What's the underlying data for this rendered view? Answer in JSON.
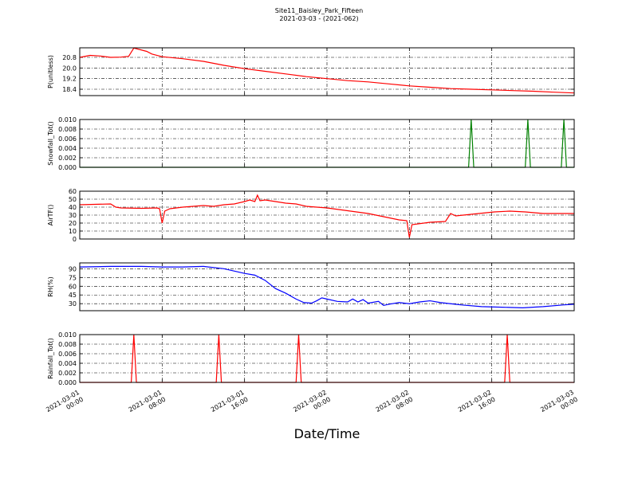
{
  "title": "Site11_Baisley_Park_Fifteen",
  "subtitle": "2021-03-03 - (2021-062)",
  "x_axis": {
    "label": "Date/Time",
    "xlim": [
      "2021-03-01 00:00",
      "2021-03-03 00:00"
    ],
    "xticks": [
      {
        "value": "2021-03-01 00:00",
        "label": [
          "2021-03-01",
          "00:00"
        ]
      },
      {
        "value": "2021-03-01 08:00",
        "label": [
          "2021-03-01",
          "08:00"
        ]
      },
      {
        "value": "2021-03-01 16:00",
        "label": [
          "2021-03-01",
          "16:00"
        ]
      },
      {
        "value": "2021-03-02 00:00",
        "label": [
          "2021-03-02",
          "00:00"
        ]
      },
      {
        "value": "2021-03-02 08:00",
        "label": [
          "2021-03-02",
          "08:00"
        ]
      },
      {
        "value": "2021-03-02 16:00",
        "label": [
          "2021-03-02",
          "16:00"
        ]
      },
      {
        "value": "2021-03-03 00:00",
        "label": [
          "2021-03-03",
          "00:00"
        ]
      }
    ]
  },
  "chart_data": [
    {
      "type": "line",
      "ylabel": "P(unitless)",
      "color": "#ff0000",
      "grid": true,
      "ylim": [
        17.92,
        21.52
      ],
      "yticks": [
        18.4,
        19.2,
        {
          "value": 20.0,
          "label": "20.0"
        },
        20.8
      ],
      "x": [
        "2021-03-01 00:00",
        "2021-03-01 01:00",
        "2021-03-01 02:00",
        "2021-03-01 03:00",
        "2021-03-01 04:00",
        "2021-03-01 04:45",
        "2021-03-01 05:15",
        "2021-03-01 06:30",
        "2021-03-01 07:00",
        "2021-03-01 08:00",
        "2021-03-01 10:00",
        "2021-03-01 12:00",
        "2021-03-01 14:00",
        "2021-03-01 16:00",
        "2021-03-01 18:00",
        "2021-03-01 20:00",
        "2021-03-01 22:00",
        "2021-03-02 00:00",
        "2021-03-02 02:00",
        "2021-03-02 04:00",
        "2021-03-02 06:00",
        "2021-03-02 08:00",
        "2021-03-02 10:00",
        "2021-03-02 12:00",
        "2021-03-02 14:00",
        "2021-03-02 16:00",
        "2021-03-02 18:00",
        "2021-03-02 20:00",
        "2021-03-02 22:00",
        "2021-03-03 00:00"
      ],
      "values": [
        20.8,
        20.95,
        20.9,
        20.8,
        20.82,
        20.88,
        21.5,
        21.25,
        21.05,
        20.85,
        20.7,
        20.5,
        20.2,
        19.95,
        19.75,
        19.55,
        19.35,
        19.2,
        19.05,
        18.95,
        18.8,
        18.65,
        18.55,
        18.45,
        18.4,
        18.35,
        18.3,
        18.25,
        18.18,
        18.12
      ]
    },
    {
      "type": "line",
      "ylabel": "Snowfall_Tot()",
      "color": "#008000",
      "grid": true,
      "ylim": [
        0,
        0.01
      ],
      "yticks": [
        {
          "value": 0,
          "label": "0.000"
        },
        {
          "value": 0.002,
          "label": "0.002"
        },
        {
          "value": 0.004,
          "label": "0.004"
        },
        {
          "value": 0.006,
          "label": "0.006"
        },
        {
          "value": 0.008,
          "label": "0.008"
        },
        {
          "value": 0.01,
          "label": "0.010"
        }
      ],
      "x": [
        "2021-03-01 00:00",
        "2021-03-02 13:45",
        "2021-03-02 14:00",
        "2021-03-02 14:15",
        "2021-03-02 19:15",
        "2021-03-02 19:30",
        "2021-03-02 19:45",
        "2021-03-02 22:45",
        "2021-03-02 23:00",
        "2021-03-02 23:15",
        "2021-03-03 00:00"
      ],
      "values": [
        0,
        0,
        0.01,
        0,
        0,
        0.01,
        0,
        0,
        0.01,
        0,
        0
      ]
    },
    {
      "type": "line",
      "ylabel": "AirTF()",
      "color": "#ff0000",
      "grid": true,
      "ylim": [
        0,
        60
      ],
      "yticks": [
        0,
        10,
        20,
        30,
        40,
        50,
        60
      ],
      "x": [
        "2021-03-01 00:00",
        "2021-03-01 03:00",
        "2021-03-01 03:30",
        "2021-03-01 04:00",
        "2021-03-01 06:00",
        "2021-03-01 07:30",
        "2021-03-01 07:45",
        "2021-03-01 08:00",
        "2021-03-01 08:15",
        "2021-03-01 08:45",
        "2021-03-01 10:00",
        "2021-03-01 12:00",
        "2021-03-01 13:00",
        "2021-03-01 14:00",
        "2021-03-01 15:00",
        "2021-03-01 16:00",
        "2021-03-01 16:30",
        "2021-03-01 17:00",
        "2021-03-01 17:15",
        "2021-03-01 17:30",
        "2021-03-01 18:00",
        "2021-03-01 19:00",
        "2021-03-01 20:00",
        "2021-03-01 21:00",
        "2021-03-01 22:00",
        "2021-03-01 23:00",
        "2021-03-02 00:00",
        "2021-03-02 04:00",
        "2021-03-02 07:00",
        "2021-03-02 07:45",
        "2021-03-02 08:00",
        "2021-03-02 08:15",
        "2021-03-02 10:00",
        "2021-03-02 11:30",
        "2021-03-02 12:00",
        "2021-03-02 12:30",
        "2021-03-02 14:45",
        "2021-03-02 16:15",
        "2021-03-02 17:45",
        "2021-03-02 19:15",
        "2021-03-02 21:00",
        "2021-03-03 00:00"
      ],
      "values": [
        43,
        44,
        40,
        39,
        38.5,
        39,
        38,
        20,
        35,
        38,
        40,
        42,
        41,
        43,
        44,
        47,
        49,
        47,
        55,
        48,
        49,
        47,
        45,
        44,
        41,
        40,
        39,
        32,
        24,
        23,
        2,
        18,
        21,
        22,
        32,
        29,
        32,
        34,
        35,
        34,
        32,
        32
      ]
    },
    {
      "type": "line",
      "ylabel": "RH(%)",
      "color": "#0000ff",
      "grid": true,
      "ylim": [
        18,
        100
      ],
      "yticks": [
        30,
        45,
        60,
        75,
        90
      ],
      "x": [
        "2021-03-01 00:00",
        "2021-03-01 03:00",
        "2021-03-01 06:00",
        "2021-03-01 08:00",
        "2021-03-01 10:00",
        "2021-03-01 12:00",
        "2021-03-01 14:00",
        "2021-03-01 16:00",
        "2021-03-01 17:00",
        "2021-03-01 18:00",
        "2021-03-01 19:00",
        "2021-03-01 20:00",
        "2021-03-01 21:00",
        "2021-03-01 21:45",
        "2021-03-01 22:30",
        "2021-03-01 23:00",
        "2021-03-01 23:30",
        "2021-03-02 00:00",
        "2021-03-02 01:00",
        "2021-03-02 02:00",
        "2021-03-02 02:30",
        "2021-03-02 03:00",
        "2021-03-02 03:30",
        "2021-03-02 04:00",
        "2021-03-02 05:00",
        "2021-03-02 05:30",
        "2021-03-02 06:00",
        "2021-03-02 07:00",
        "2021-03-02 08:00",
        "2021-03-02 09:00",
        "2021-03-02 10:00",
        "2021-03-02 11:00",
        "2021-03-02 12:00",
        "2021-03-02 13:00",
        "2021-03-02 15:00",
        "2021-03-02 17:00",
        "2021-03-02 19:00",
        "2021-03-02 21:00",
        "2021-03-02 23:00",
        "2021-03-03 00:00"
      ],
      "values": [
        93,
        94,
        94,
        93,
        93,
        94,
        90,
        82,
        79,
        70,
        56,
        48,
        38,
        32,
        31,
        35,
        40,
        38,
        34,
        33,
        38,
        33,
        37,
        31,
        34,
        27,
        29,
        32,
        30,
        33,
        35,
        32,
        30,
        28,
        25,
        24,
        23,
        25,
        28,
        29
      ]
    },
    {
      "type": "line",
      "ylabel": "Rainfall_Tot()",
      "color": "#ff0000",
      "grid": true,
      "ylim": [
        0,
        0.01
      ],
      "yticks": [
        {
          "value": 0,
          "label": "0.000"
        },
        {
          "value": 0.002,
          "label": "0.002"
        },
        {
          "value": 0.004,
          "label": "0.004"
        },
        {
          "value": 0.006,
          "label": "0.006"
        },
        {
          "value": 0.008,
          "label": "0.008"
        },
        {
          "value": 0.01,
          "label": "0.010"
        }
      ],
      "x": [
        "2021-03-01 00:00",
        "2021-03-01 05:00",
        "2021-03-01 05:15",
        "2021-03-01 05:30",
        "2021-03-01 13:15",
        "2021-03-01 13:30",
        "2021-03-01 13:45",
        "2021-03-01 21:00",
        "2021-03-01 21:15",
        "2021-03-01 21:30",
        "2021-03-02 17:15",
        "2021-03-02 17:30",
        "2021-03-02 17:45",
        "2021-03-03 00:00"
      ],
      "values": [
        0,
        0,
        0.01,
        0,
        0,
        0.01,
        0,
        0,
        0.01,
        0,
        0,
        0.01,
        0,
        0
      ]
    }
  ]
}
